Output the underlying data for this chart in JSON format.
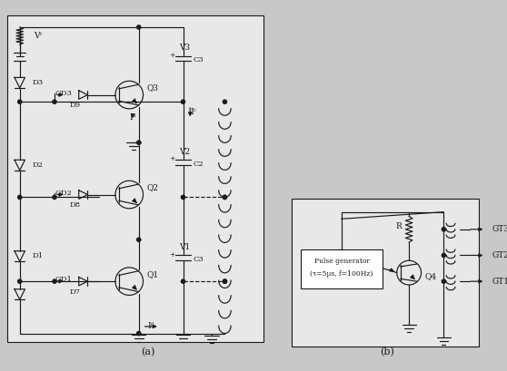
{
  "bg_color": "#c8c8c8",
  "panel_a_facecolor": "#e8e8e8",
  "panel_b_facecolor": "#e8e8e8",
  "line_color": "#1a1a1a",
  "text_color": "#1a1a1a",
  "label_a": "(a)",
  "label_b": "(b)",
  "pulse_text1": "Pulse generator",
  "pulse_text2": "(τ=5µs, f=100Hz)",
  "GT_labels": [
    "GT3",
    "GT2",
    "GT1"
  ],
  "fig_w": 5.58,
  "fig_h": 4.09,
  "dpi": 100
}
